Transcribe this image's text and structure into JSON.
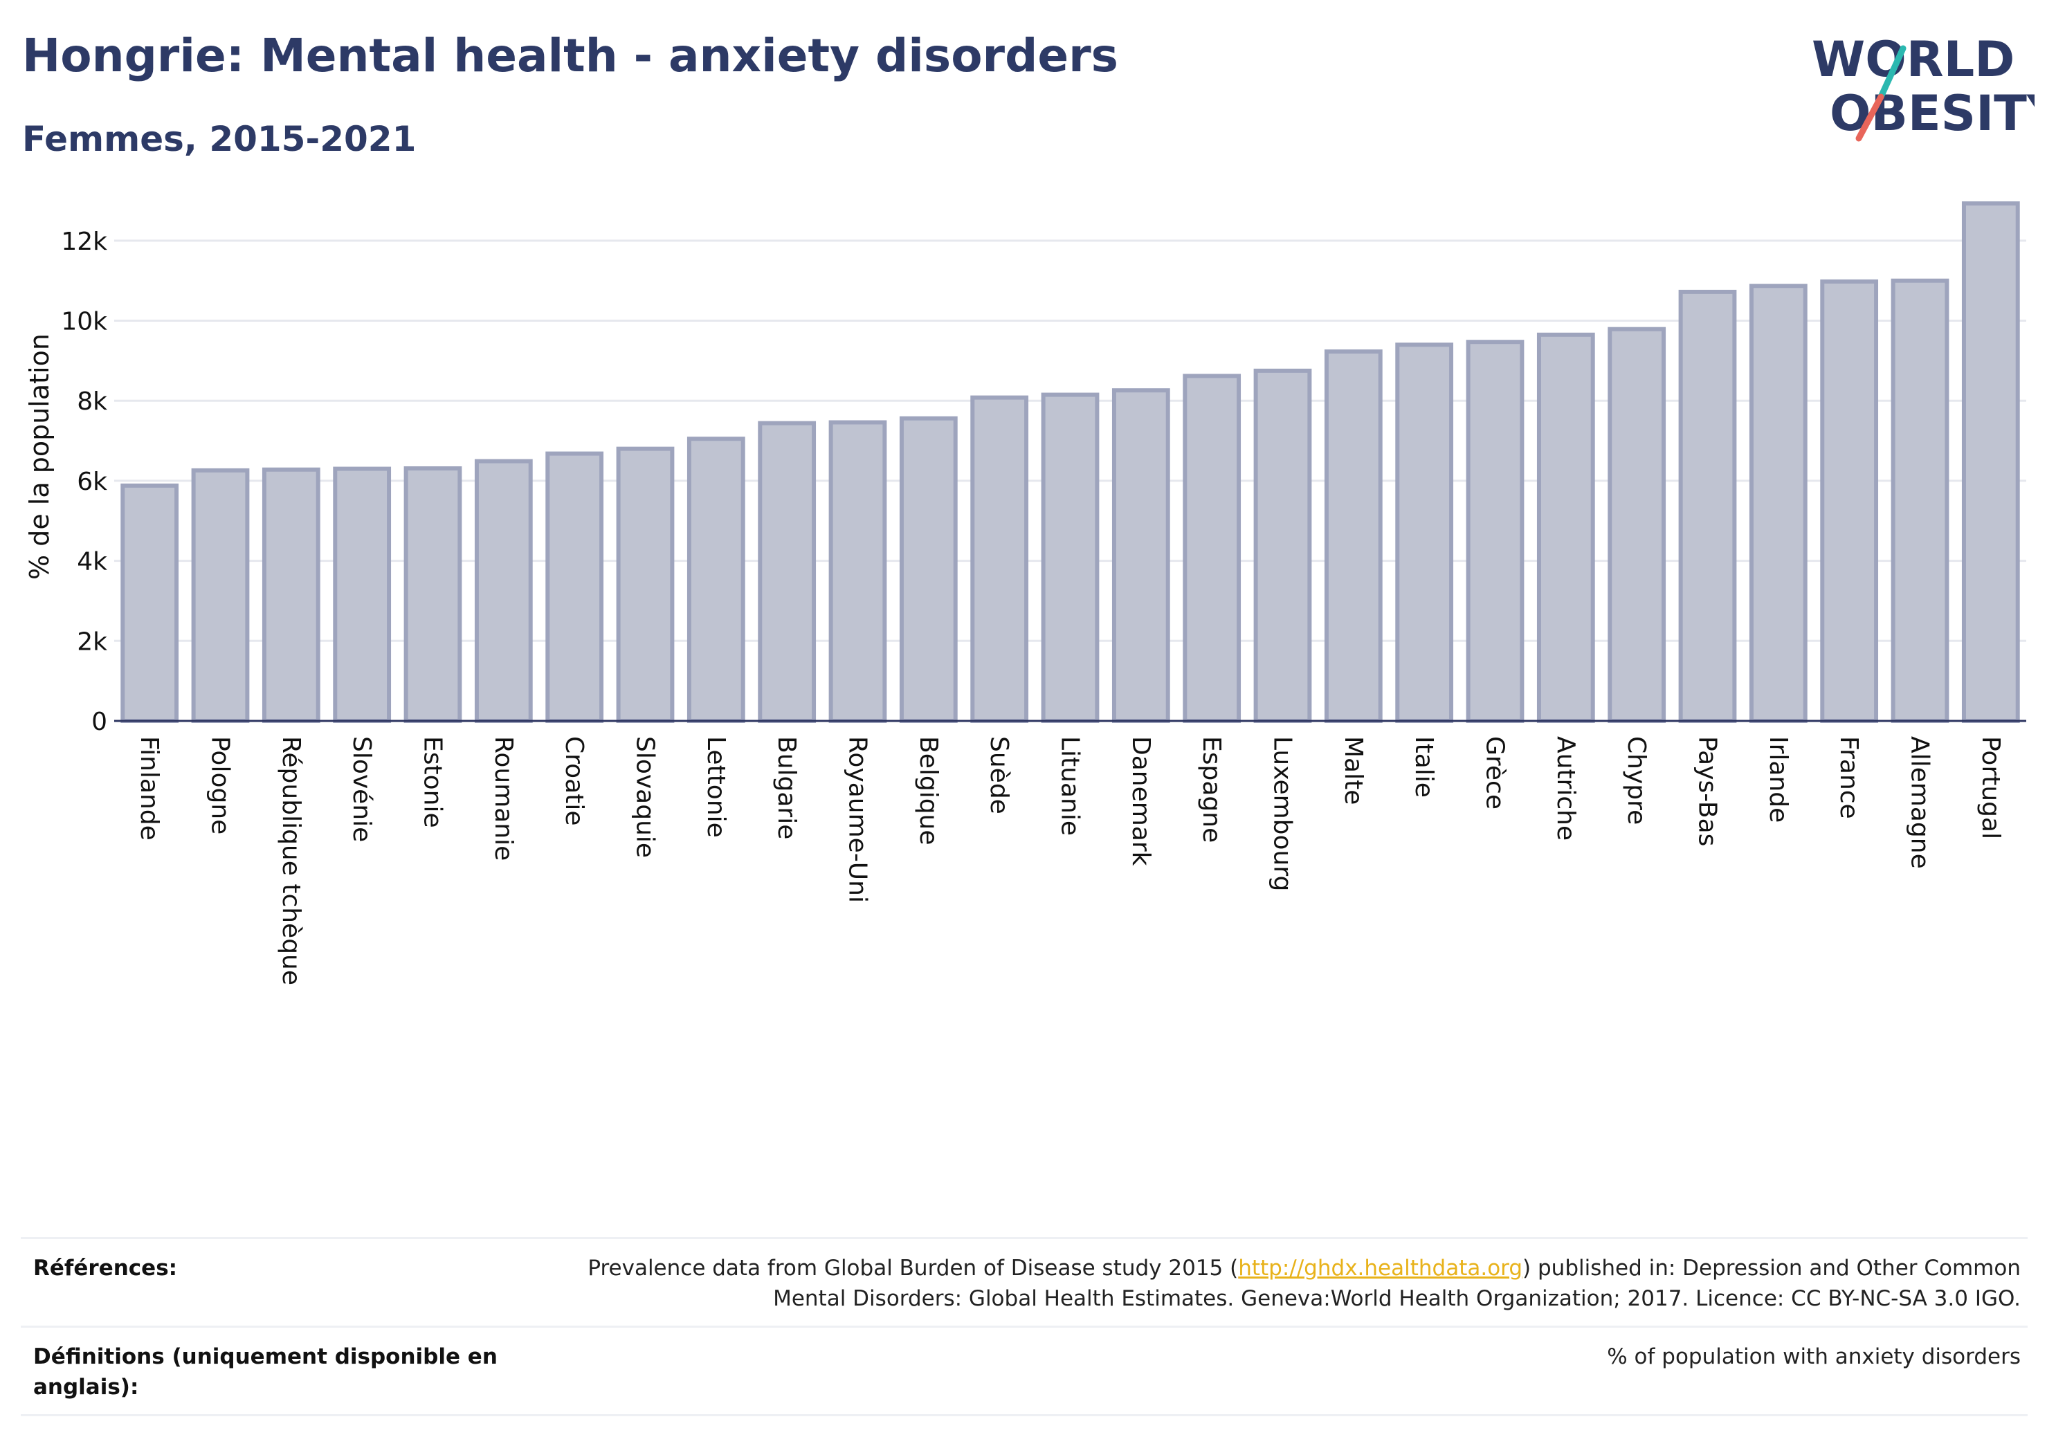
{
  "header": {
    "title": "Hongrie: Mental health - anxiety disorders",
    "subtitle": "Femmes, 2015-2021"
  },
  "logo": {
    "line1": "WORLD",
    "line2": "OBESITY",
    "slash_colors": [
      "#2bb8b0",
      "#e8655a"
    ]
  },
  "colors": {
    "bar_fill": "#bfc3d1",
    "bar_stroke": "#9ea4bd",
    "axis": "#2d3561",
    "grid": "#e6e8ee",
    "text": "#111111",
    "link": "#e8b21a"
  },
  "chart_data": {
    "type": "bar",
    "title": "",
    "xlabel": "",
    "ylabel": "% de la population",
    "ylim": [
      0,
      13000
    ],
    "yticks": [
      0,
      2000,
      4000,
      6000,
      8000,
      10000,
      12000
    ],
    "ytick_labels": [
      "0",
      "2k",
      "4k",
      "6k",
      "8k",
      "10k",
      "12k"
    ],
    "grid": true,
    "categories": [
      "Finlande",
      "Pologne",
      "République tchèque",
      "Slovénie",
      "Estonie",
      "Roumanie",
      "Croatie",
      "Slovaquie",
      "Lettonie",
      "Bulgarie",
      "Royaume-Uni",
      "Belgique",
      "Suède",
      "Lituanie",
      "Danemark",
      "Espagne",
      "Luxembourg",
      "Malte",
      "Italie",
      "Grèce",
      "Autriche",
      "Chypre",
      "Pays-Bas",
      "Irlande",
      "France",
      "Allemagne",
      "Portugal"
    ],
    "values": [
      5880,
      6260,
      6280,
      6300,
      6310,
      6490,
      6680,
      6800,
      7050,
      7440,
      7460,
      7560,
      8080,
      8150,
      8260,
      8620,
      8750,
      9230,
      9400,
      9470,
      9650,
      9790,
      10720,
      10870,
      10980,
      11000,
      12930
    ]
  },
  "references": {
    "label": "Références:",
    "text_before": "Prevalence data from Global Burden of Disease study 2015 (",
    "link": "http://ghdx.healthdata.org",
    "text_after": ") published in: Depression and Other Common",
    "line2": "Mental Disorders: Global Health Estimates. Geneva:World Health Organization; 2017. Licence: CC BY-NC-SA 3.0 IGO."
  },
  "definitions": {
    "label_line1": "Définitions (uniquement disponible en",
    "label_line2": "anglais):",
    "text": "% of population with anxiety disorders"
  }
}
